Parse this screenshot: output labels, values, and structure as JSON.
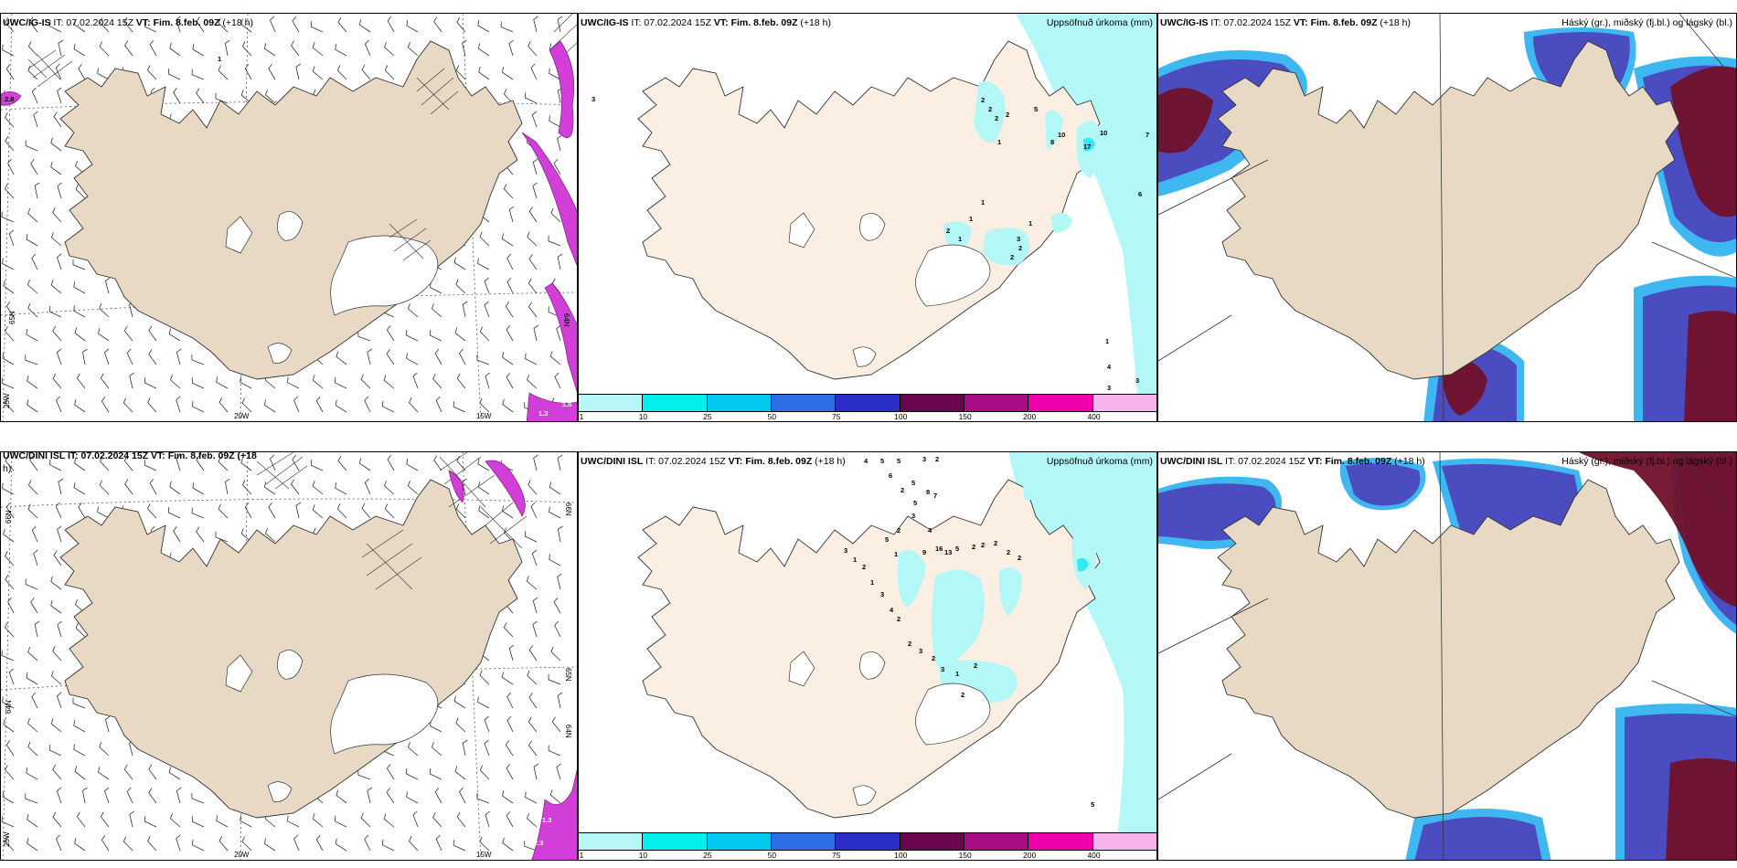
{
  "colors": {
    "land": "#e8d9c5",
    "land_light": "#fbefe3",
    "precip_light": "#b3f7f7",
    "precip_cyan": "#30ecec",
    "cloud_high": "#70102a",
    "cloud_mid": "#4b4cc0",
    "cloud_low": "#3fb8f2",
    "wind_purple": "#d23fd8",
    "colorbar": [
      "#b9f6f7",
      "#00f0ee",
      "#00c8ef",
      "#2b6ee6",
      "#2b2ec6",
      "#6a0650",
      "#a80d86",
      "#f000ad",
      "#f6b3ee"
    ]
  },
  "panels": {
    "r1c1": {
      "model": "UWC/IG-IS",
      "it_label": " IT: ",
      "it": "07.02.2024 15Z",
      "vt_label": " VT: ",
      "vt": "Fim. 8.feb. 09Z",
      "lead": " (+18 h)",
      "lon_labels": [
        "20W",
        "15W"
      ],
      "lat_labels": [
        "65N",
        "64N"
      ],
      "edge_labels": [
        "65N",
        "25W"
      ],
      "values": [
        "2.8",
        "1.3",
        "1.5",
        "1"
      ]
    },
    "r1c2": {
      "model": "UWC/IG-IS",
      "it_label": " IT: ",
      "it": "07.02.2024 15Z",
      "vt_label": " VT: ",
      "vt": "Fim. 8.feb. 09Z",
      "lead": " (+18 h)",
      "right_title": "Uppsöfnuð úrkoma (mm)",
      "colorbar_ticks": [
        "1",
        "10",
        "25",
        "50",
        "75",
        "100",
        "150",
        "200",
        "400"
      ],
      "values": [
        "2",
        "2",
        "2",
        "2",
        "1",
        "5",
        "8",
        "10",
        "10",
        "17",
        "7",
        "6",
        "1",
        "1",
        "1",
        "2",
        "2",
        "3",
        "2",
        "1",
        "1",
        "4",
        "3",
        "3"
      ]
    },
    "r1c3": {
      "model": "UWC/IG-IS",
      "it_label": " IT: ",
      "it": "07.02.2024 15Z",
      "vt_label": " VT: ",
      "vt": "Fim. 8.feb. 09Z",
      "lead": " (+18 h)",
      "right_title": "Háský (gr.), miðský (fj.bl.) og lágský (bl.)"
    },
    "r2c1": {
      "partial_title": "UWC/DINI ISL IT: 07.02.2024 15Z VT: Fim. 8.feb. 09Z (+18",
      "partial_title_cont": "h)",
      "lon_labels": [
        "20W",
        "15W"
      ],
      "lat_labels": [
        "66N",
        "65N",
        "64N"
      ],
      "edge_labels": [
        "66N",
        "65N",
        "64N",
        "25W"
      ],
      "values": [
        "1.3",
        "2.3"
      ]
    },
    "r2c2": {
      "model": "UWC/DINI ISL",
      "it_label": " IT: ",
      "it": "07.02.2024 15Z",
      "vt_label": " VT: ",
      "vt": "Fim. 8.feb. 09Z",
      "lead": " (+18 h)",
      "right_title": "Uppsöfnuð úrkoma (mm)",
      "colorbar_ticks": [
        "1",
        "10",
        "25",
        "50",
        "75",
        "100",
        "150",
        "200",
        "400"
      ],
      "values": [
        "4",
        "5",
        "5",
        "3",
        "2",
        "6",
        "2",
        "5",
        "8",
        "7",
        "5",
        "3",
        "2",
        "4",
        "1",
        "5",
        "9",
        "16",
        "13",
        "5",
        "2",
        "2",
        "2",
        "2",
        "2",
        "3",
        "1",
        "2",
        "1",
        "3",
        "4",
        "2",
        "2",
        "3",
        "2",
        "3",
        "1",
        "2",
        "2",
        "5"
      ]
    },
    "r2c3": {
      "model": "UWC/DINI ISL",
      "it_label": " IT: ",
      "it": "07.02.2024 15Z",
      "vt_label": " VT: ",
      "vt": "Fim. 8.feb. 09Z",
      "lead": " (+18 h)",
      "right_title": "Háský (gr.), miðský (fj.bl.) og lágský (bl.)"
    }
  }
}
